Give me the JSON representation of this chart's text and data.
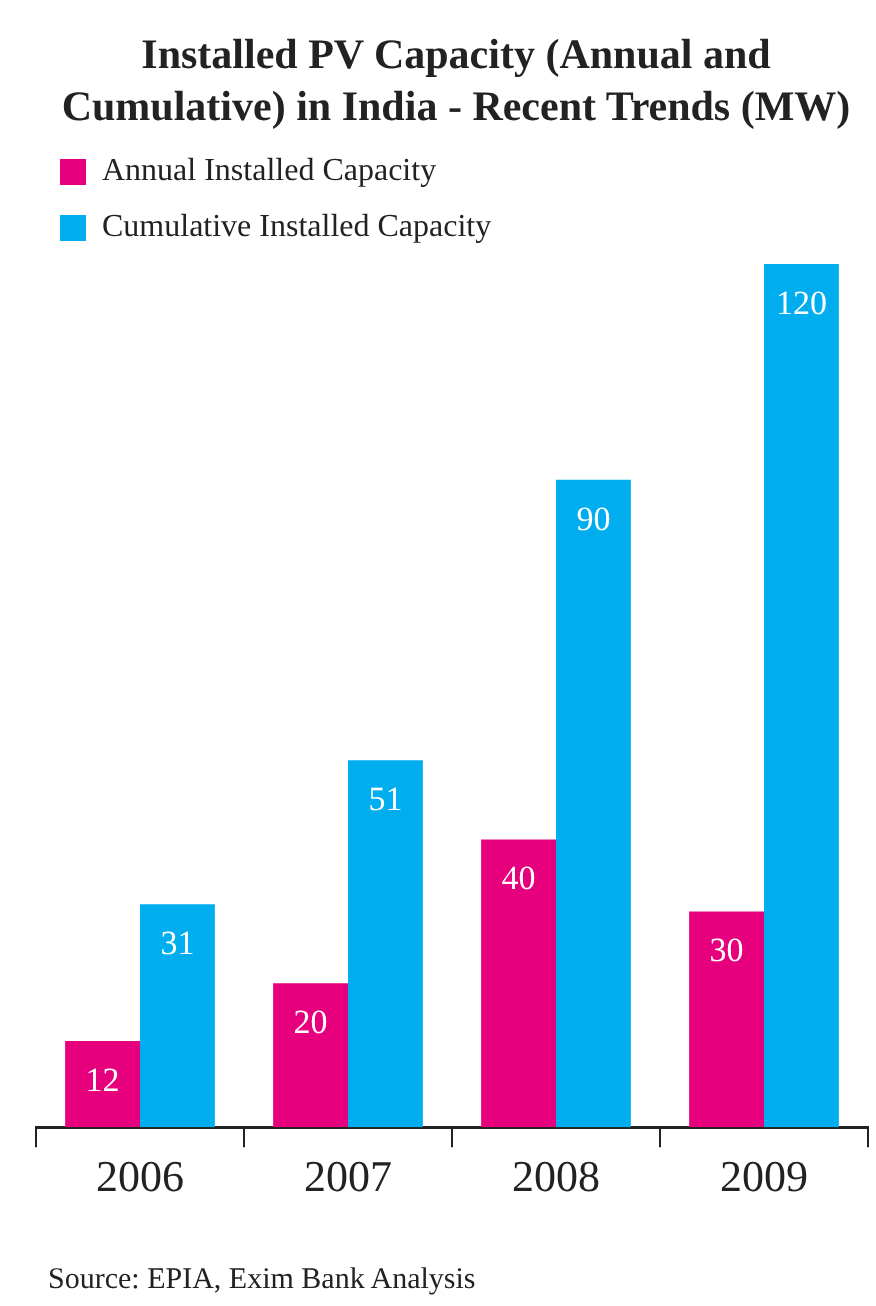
{
  "chart_data": {
    "type": "bar",
    "title": "Installed PV Capacity (Annual and Cumulative) in India - Recent Trends (MW)",
    "categories": [
      "2006",
      "2007",
      "2008",
      "2009"
    ],
    "series": [
      {
        "name": "Annual Installed Capacity",
        "color": "#e6007e",
        "values": [
          12,
          20,
          40,
          30
        ]
      },
      {
        "name": "Cumulative Installed Capacity",
        "color": "#00aeef",
        "values": [
          31,
          51,
          90,
          120
        ]
      }
    ],
    "data_labels": true,
    "legend": "top left",
    "grid": false,
    "annotations": [
      "Source: EPIA, Exim Bank Analysis"
    ]
  }
}
